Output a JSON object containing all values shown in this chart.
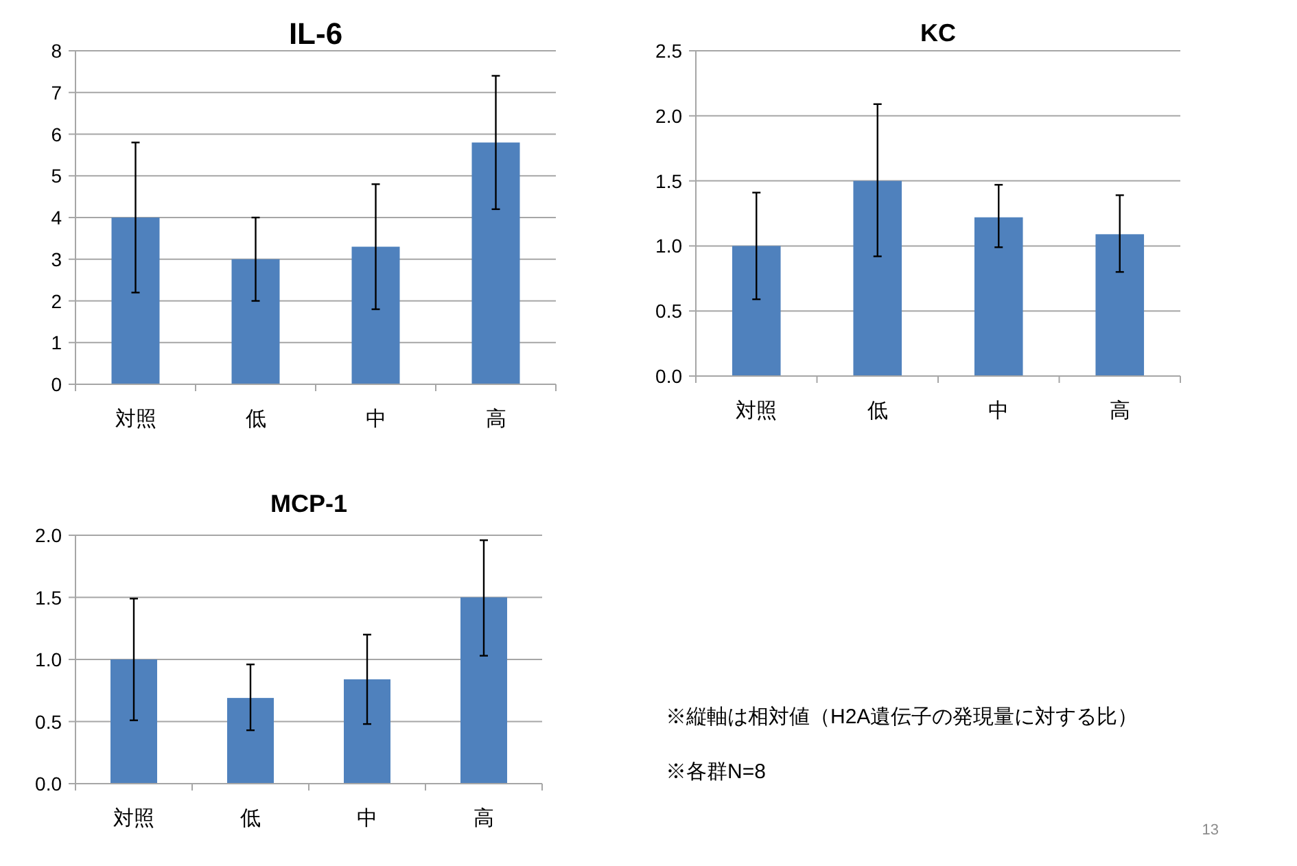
{
  "chart_data": [
    {
      "type": "bar",
      "title": "IL-6",
      "categories": [
        "対照",
        "低",
        "中",
        "高"
      ],
      "values": [
        4.0,
        3.0,
        3.3,
        5.8
      ],
      "errors": [
        [
          2.2,
          5.8
        ],
        [
          2.0,
          4.0
        ],
        [
          1.8,
          4.8
        ],
        [
          4.2,
          7.4
        ]
      ],
      "color": "#4f81bd",
      "ylim": [
        0,
        8
      ],
      "yticks": [
        0,
        1,
        2,
        3,
        4,
        5,
        6,
        7,
        8
      ],
      "grid": "y"
    },
    {
      "type": "bar",
      "title": "KC",
      "categories": [
        "対照",
        "低",
        "中",
        "高"
      ],
      "values": [
        1.0,
        1.5,
        1.22,
        1.09
      ],
      "errors": [
        [
          0.59,
          1.41
        ],
        [
          0.92,
          2.09
        ],
        [
          0.99,
          1.47
        ],
        [
          0.8,
          1.39
        ]
      ],
      "color": "#4f81bd",
      "ylim": [
        0,
        2.5
      ],
      "yticks": [
        {
          "value": 0,
          "label": "0.0"
        },
        {
          "value": 0.5,
          "label": "0.5"
        },
        {
          "value": 1,
          "label": "1.0"
        },
        {
          "value": 1.5,
          "label": "1.5"
        },
        {
          "value": 2,
          "label": "2.0"
        },
        {
          "value": 2.5,
          "label": "2.5"
        }
      ],
      "grid": "y"
    },
    {
      "type": "bar",
      "title": "MCP-1",
      "categories": [
        "対照",
        "低",
        "中",
        "高"
      ],
      "values": [
        1.0,
        0.69,
        0.84,
        1.5
      ],
      "errors": [
        [
          0.51,
          1.49
        ],
        [
          0.43,
          0.96
        ],
        [
          0.48,
          1.2
        ],
        [
          1.03,
          1.96
        ]
      ],
      "color": "#4f81bd",
      "ylim": [
        0,
        2
      ],
      "yticks": [
        {
          "value": 0,
          "label": "0.0"
        },
        {
          "value": 0.5,
          "label": "0.5"
        },
        {
          "value": 1,
          "label": "1.0"
        },
        {
          "value": 1.5,
          "label": "1.5"
        },
        {
          "value": 2,
          "label": "2.0"
        }
      ],
      "grid": "y"
    },
    {
      "type": "other",
      "annotations": [
        "※縦軸は相対値（H2A遺伝子の発現量に対する比）",
        "※各群N=8",
        "13"
      ]
    }
  ]
}
